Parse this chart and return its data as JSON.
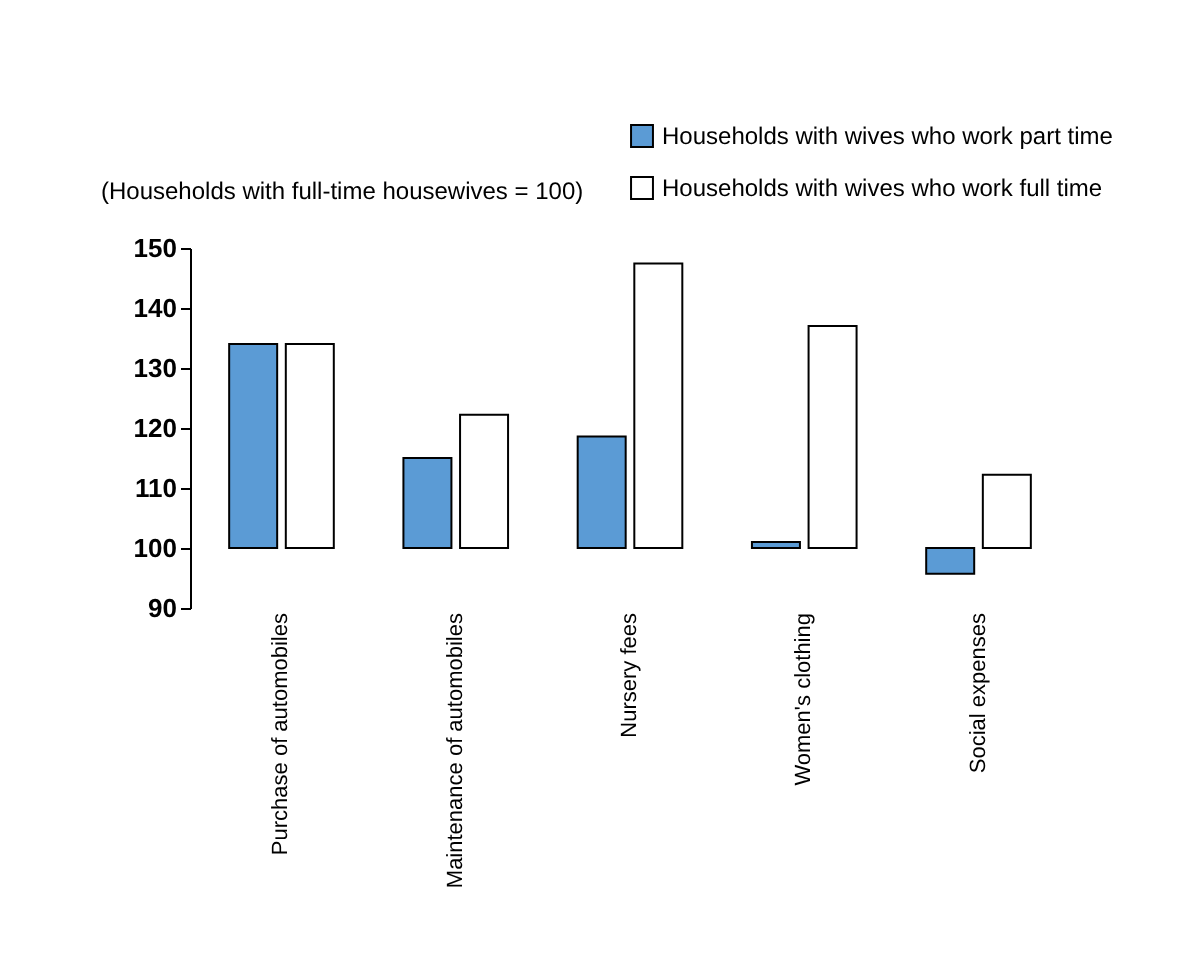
{
  "chart_data": {
    "type": "bar",
    "ylabel": "(Households with full-time housewives = 100)",
    "categories": [
      "Purchase of automobiles",
      "Maintenance of automobiles",
      "Nursery fees",
      "Women's clothing",
      "Social expenses"
    ],
    "series": [
      {
        "name": "Households with wives who work part time",
        "color": "#5b9bd5",
        "base": [
          100,
          100,
          100,
          100,
          100
        ],
        "values": [
          34,
          15,
          18.6,
          1,
          -4.3
        ]
      },
      {
        "name": "Households with wives who work full time",
        "color": "#ffffff",
        "base": [
          100,
          100,
          100,
          100,
          100
        ],
        "values": [
          34,
          22.2,
          47.4,
          37,
          12.2
        ]
      }
    ],
    "ylim": [
      90,
      150
    ],
    "yticks": [
      90,
      100,
      110,
      120,
      130,
      140,
      150
    ],
    "grid": false,
    "legend": "top right"
  }
}
